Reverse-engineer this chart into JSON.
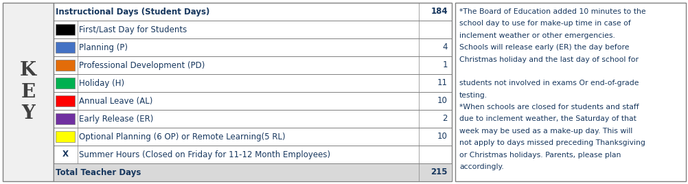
{
  "rows": [
    {
      "label": "Instructional Days (Student Days)",
      "color": null,
      "value": "184",
      "bold": true,
      "bg": "#ffffff"
    },
    {
      "label": "First/Last Day for Students",
      "color": "#000000",
      "value": "",
      "bold": false,
      "bg": "#ffffff"
    },
    {
      "label": "Planning (P)",
      "color": "#4472c4",
      "value": "4",
      "bold": false,
      "bg": "#ffffff"
    },
    {
      "label": "Professional Development (PD)",
      "color": "#e36c09",
      "value": "1",
      "bold": false,
      "bg": "#ffffff"
    },
    {
      "label": "Holiday (H)",
      "color": "#00b050",
      "value": "11",
      "bold": false,
      "bg": "#ffffff"
    },
    {
      "label": "Annual Leave (AL)",
      "color": "#ff0000",
      "value": "10",
      "bold": false,
      "bg": "#ffffff"
    },
    {
      "label": "Early Release (ER)",
      "color": "#7030a0",
      "value": "2",
      "bold": false,
      "bg": "#ffffff"
    },
    {
      "label": "Optional Planning (6 OP) or Remote Learning(5 RL)",
      "color": "#ffff00",
      "value": "10",
      "bold": false,
      "bg": "#ffffff"
    },
    {
      "label": "Summer Hours (Closed on Friday for 11-12 Month Employees)",
      "color": "X",
      "value": "",
      "bold": false,
      "bg": "#ffffff"
    },
    {
      "label": "Total Teacher Days",
      "color": null,
      "value": "215",
      "bold": true,
      "bg": "#d9d9d9"
    }
  ],
  "key_label": "K\nE\nY",
  "key_bg": "#f0f0f0",
  "note_lines": [
    "*The Board of Education added 10 minutes to the",
    "school day to use for make-up time in case of",
    "inclement weather or other emergencies.",
    "Schools will release early (ER) the day before",
    "Christmas holiday and the last day of school for",
    "",
    "students not involved in exams Or end-of-grade",
    "testing.",
    "*When schools are closed for students and staff",
    "due to inclement weather, the Saturday of that",
    "week may be used as a make-up day. This will",
    "not apply to days missed preceding Thanksgiving",
    "or Christmas holidays. Parents, please plan",
    "accordingly."
  ],
  "note_text_color": "#17375e",
  "note_text_size": 7.8,
  "table_text_color": "#17375e",
  "table_text_size": 8.5,
  "key_text_size": 20,
  "key_text_color": "#404040",
  "border_color": "#7f7f7f",
  "fig_width": 10.03,
  "fig_height": 2.68,
  "dpi": 100
}
